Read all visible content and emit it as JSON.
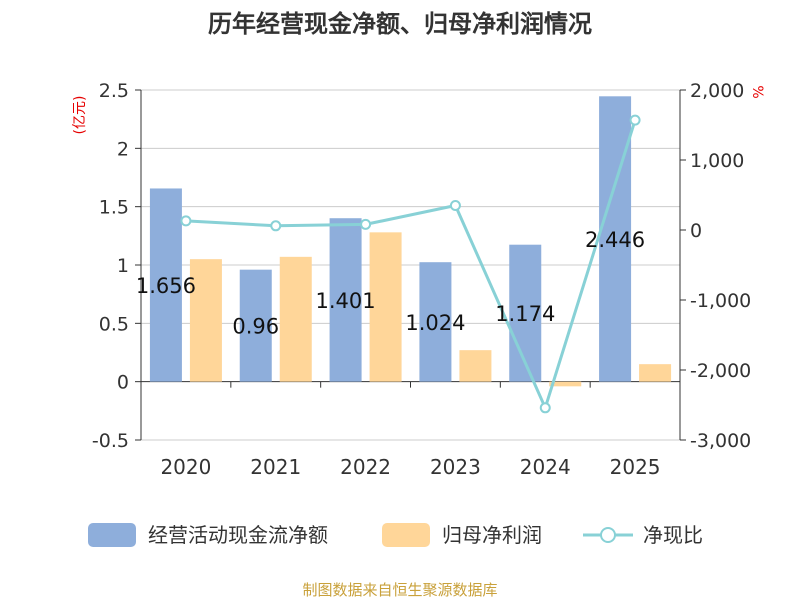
{
  "chart_data": {
    "type": "bar",
    "title": "历年经营现金净额、归母净利润情况",
    "categories": [
      "2020",
      "2021",
      "2022",
      "2023",
      "2024",
      "2025"
    ],
    "left_axis": {
      "unit": "(亿元)",
      "ylim": [
        -0.5,
        2.5
      ],
      "ticks": [
        2.5,
        2,
        1.5,
        1,
        0.5,
        0,
        -0.5
      ],
      "tick_labels": [
        "2.5",
        "2",
        "1.5",
        "1",
        "0.5",
        "0",
        "-0.5"
      ]
    },
    "right_axis": {
      "unit": "%",
      "ylim": [
        -3000,
        2000
      ],
      "ticks": [
        2000,
        1000,
        0,
        -1000,
        -2000,
        -3000
      ],
      "tick_labels": [
        "2,000",
        "1,000",
        "0",
        "-1,000",
        "-2,000",
        "-3,000"
      ]
    },
    "series": [
      {
        "name": "经营活动现金流净额",
        "kind": "bar",
        "axis": "left",
        "color": "#8eaedb",
        "values": [
          1.656,
          0.96,
          1.401,
          1.024,
          1.174,
          2.446
        ],
        "labels": [
          "1.656",
          "0.96",
          "1.401",
          "1.024",
          "1.174",
          "2.446"
        ]
      },
      {
        "name": "归母净利润",
        "kind": "bar",
        "axis": "left",
        "color": "#ffd699",
        "values": [
          1.05,
          1.07,
          1.28,
          0.27,
          -0.04,
          0.15
        ]
      },
      {
        "name": "净现比",
        "kind": "line",
        "axis": "right",
        "color": "#88d1d6",
        "values": [
          130,
          60,
          80,
          350,
          -2540,
          1570
        ]
      }
    ],
    "grid": true,
    "legend_position": "bottom"
  },
  "source": "制图数据来自恒生聚源数据库"
}
